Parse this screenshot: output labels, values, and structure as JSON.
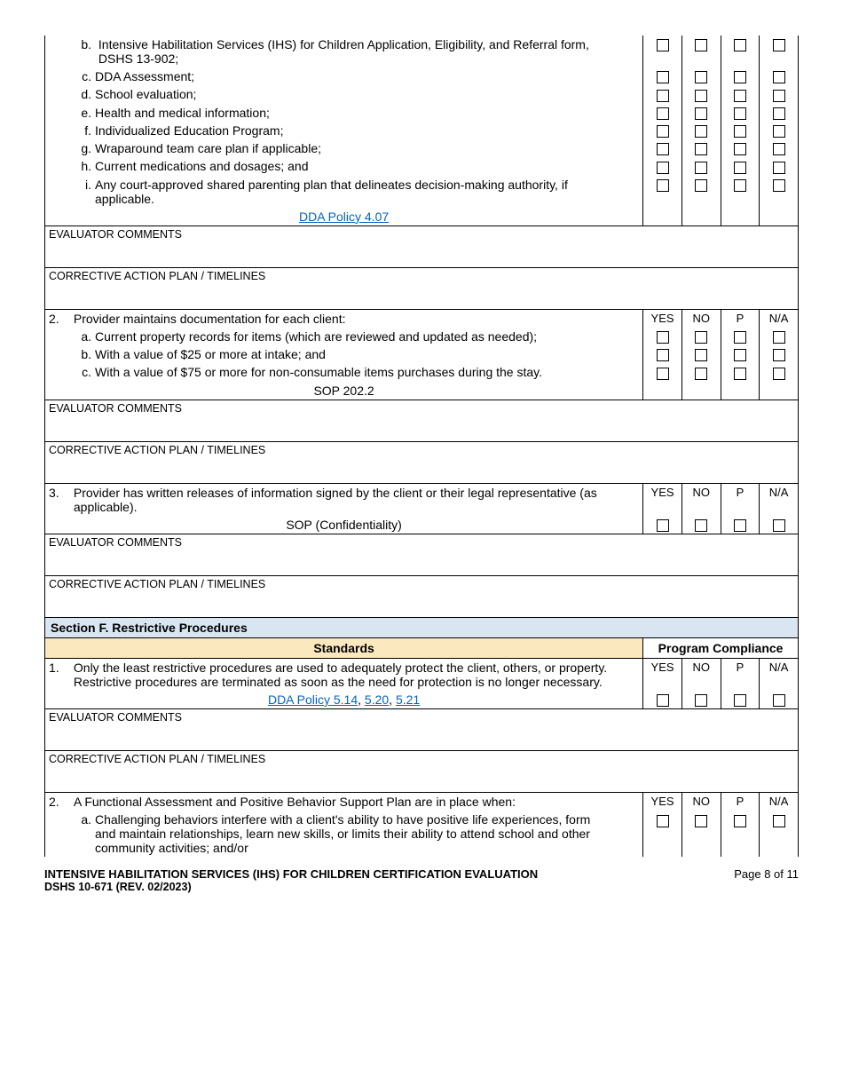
{
  "colors": {
    "section_bg": "#d9e6f2",
    "standards_bg": "#fce8bf",
    "link": "#0563c1",
    "border": "#000000",
    "text": "#000000"
  },
  "col_headers": {
    "yes": "YES",
    "no": "NO",
    "p": "P",
    "na": "N/A"
  },
  "topItems": [
    {
      "l": "b.",
      "t": "Intensive Habilitation Services (IHS) for Children Application, Eligibility, and Referral form, DSHS 13-902;"
    },
    {
      "l": "c.",
      "t": "DDA Assessment;"
    },
    {
      "l": "d.",
      "t": "School evaluation;"
    },
    {
      "l": "e.",
      "t": "Health and medical information;"
    },
    {
      "l": "f.",
      "t": "Individualized Education Program;"
    },
    {
      "l": "g.",
      "t": "Wraparound team care plan if applicable;"
    },
    {
      "l": "h.",
      "t": "Current medications and dosages; and"
    },
    {
      "l": "i.",
      "t": "Any court-approved shared parenting plan that delineates decision-making authority, if applicable."
    }
  ],
  "topRef": "DDA Policy 4.07",
  "labels": {
    "evaluator": "EVALUATOR COMMENTS",
    "corrective": "CORRECTIVE ACTION PLAN / TIMELINES"
  },
  "q2": {
    "num": "2.",
    "text": "Provider maintains documentation for each client:",
    "items": [
      {
        "l": "a.",
        "t": "Current property records for items (which are reviewed and updated as needed);"
      },
      {
        "l": "b.",
        "t": "With a value of $25 or more at intake; and"
      },
      {
        "l": "c.",
        "t": "With a value of $75 or more for non-consumable items purchases during the stay."
      }
    ],
    "ref": "SOP 202.2"
  },
  "q3": {
    "num": "3.",
    "text": "Provider has written releases of information signed by the client or their legal representative (as applicable).",
    "ref": "SOP (Confidentiality)"
  },
  "sectionF": {
    "title": "Section F.  Restrictive Procedures",
    "standards": "Standards",
    "program": "Program Compliance"
  },
  "f1": {
    "num": "1.",
    "text": "Only the least restrictive procedures are used to adequately protect the client, others, or property.  Restrictive procedures are terminated as soon as the need for protection is no longer necessary.",
    "ref_pre": "DDA Policy 5.14",
    "ref_b": "5.20",
    "ref_c": "5.21"
  },
  "f2": {
    "num": "2.",
    "text": "A Functional Assessment and Positive Behavior Support Plan are in place when:",
    "items": [
      {
        "l": "a.",
        "t": "Challenging behaviors interfere with a client's ability to have positive life experiences, form and maintain relationships, learn new skills, or limits their ability to attend school and other community activities; and/or"
      }
    ]
  },
  "footer": {
    "title": "INTENSIVE HABILITATION SERVICES (IHS) FOR CHILDREN CERTIFICATION EVALUATION",
    "form": "DSHS 10-671 (REV. 02/2023)",
    "page": "Page 8 of 11"
  }
}
